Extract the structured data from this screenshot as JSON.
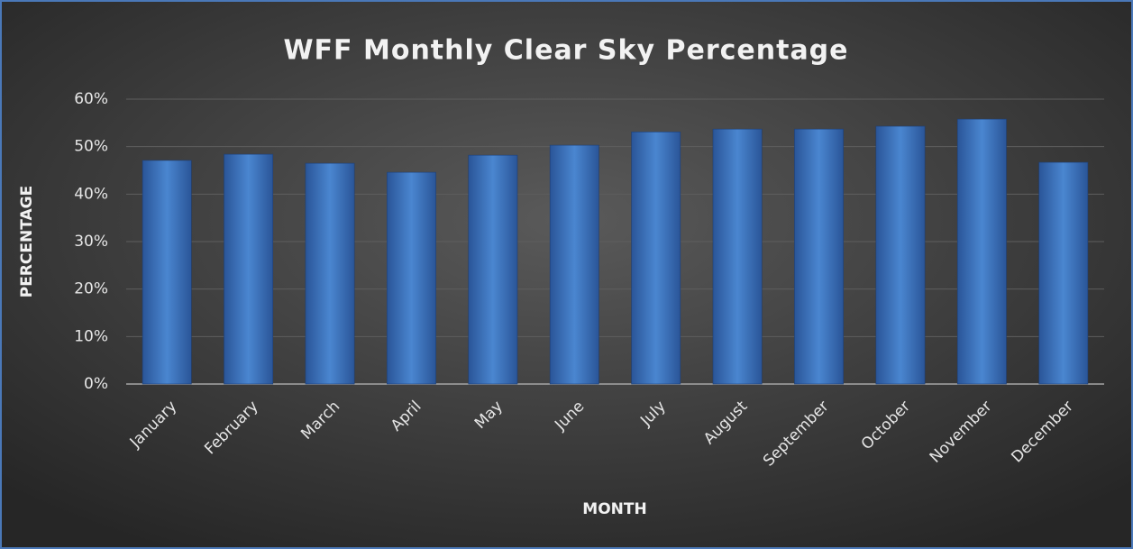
{
  "chart_data": {
    "type": "bar",
    "title": "WFF Monthly Clear Sky Percentage",
    "x_label": "MONTH",
    "y_label": "PERCENTAGE",
    "categories": [
      "January",
      "February",
      "March",
      "April",
      "May",
      "June",
      "July",
      "August",
      "September",
      "October",
      "November",
      "December"
    ],
    "values": [
      47.1,
      48.4,
      46.5,
      44.6,
      48.2,
      50.3,
      53.1,
      53.7,
      53.7,
      54.3,
      55.8,
      46.7
    ],
    "color": "#4a86d0",
    "ylim": [
      0,
      60
    ],
    "yticks": [
      {
        "value": 0,
        "label": "0%"
      },
      {
        "value": 10,
        "label": "10%"
      },
      {
        "value": 20,
        "label": "20%"
      },
      {
        "value": 30,
        "label": "30%"
      },
      {
        "value": 40,
        "label": "40%"
      },
      {
        "value": 50,
        "label": "50%"
      },
      {
        "value": 60,
        "label": "60%"
      }
    ],
    "grid": true
  }
}
